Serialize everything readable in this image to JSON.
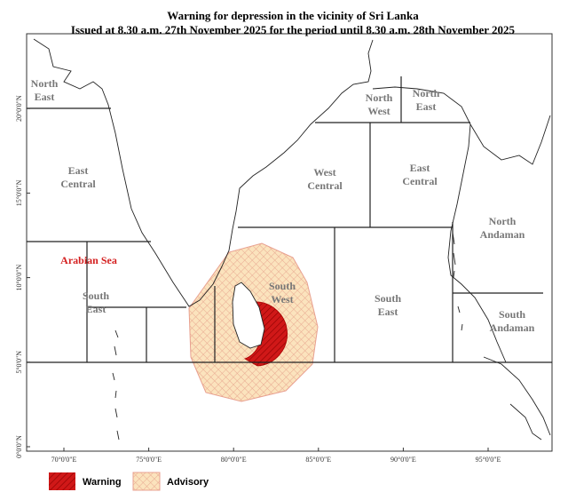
{
  "title": [
    "Warning for depression in the vicinity of Sri Lanka",
    "Issued at 8.30 a.m. 27th November 2025 for the period until 8.30 a.m. 28th November 2025"
  ],
  "regions": [
    {
      "lines": [
        "North",
        "East"
      ]
    },
    {
      "lines": [
        "East",
        "Central"
      ]
    },
    {
      "lines": [
        "Arabian Sea"
      ]
    },
    {
      "lines": [
        "South",
        "East"
      ]
    },
    {
      "lines": [
        "North",
        "West"
      ]
    },
    {
      "lines": [
        "North",
        "East"
      ]
    },
    {
      "lines": [
        "West",
        "Central"
      ]
    },
    {
      "lines": [
        "East",
        "Central"
      ]
    },
    {
      "lines": [
        "North",
        "Andaman"
      ]
    },
    {
      "lines": [
        "South",
        "West"
      ]
    },
    {
      "lines": [
        "South",
        "East"
      ]
    },
    {
      "lines": [
        "South",
        "Andaman"
      ]
    }
  ],
  "longitude_labels": [
    "70°0'0\"E",
    "75°0'0\"E",
    "80°0'0\"E",
    "85°0'0\"E",
    "90°0'0\"E",
    "95°0'0\"E"
  ],
  "latitude_labels": [
    "0°0'0\"N",
    "5°0'0\"N",
    "10°0'0\"N",
    "15°0'0\"N",
    "20°0'0\"N"
  ],
  "legend": [
    "Warning",
    "Advisory"
  ]
}
